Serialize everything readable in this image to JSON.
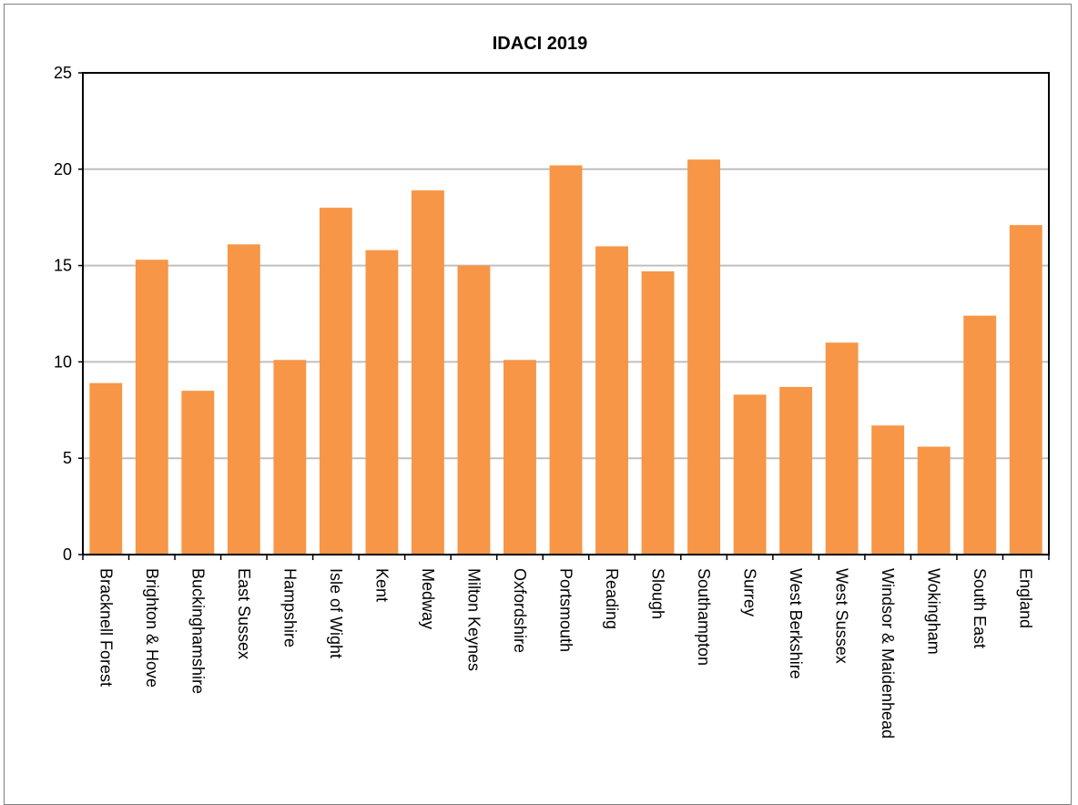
{
  "chart_data": {
    "type": "bar",
    "title": "IDACI 2019",
    "xlabel": "",
    "ylabel": "",
    "ylim": [
      0,
      25
    ],
    "yticks": [
      0,
      5,
      10,
      15,
      20,
      25
    ],
    "grid": true,
    "legend": "none",
    "bar_color": "#f79646",
    "categories": [
      "Bracknell Forest",
      "Brighton & Hove",
      "Buckinghamshire",
      "East Sussex",
      "Hampshire",
      "Isle of Wight",
      "Kent",
      "Medway",
      "Milton Keynes",
      "Oxfordshire",
      "Portsmouth",
      "Reading",
      "Slough",
      "Southampton",
      "Surrey",
      "West Berkshire",
      "West Sussex",
      "Windsor & Maidenhead",
      "Wokingham",
      "South East",
      "England"
    ],
    "values": [
      8.9,
      15.3,
      8.5,
      16.1,
      10.1,
      18.0,
      15.8,
      18.9,
      15.0,
      10.1,
      20.2,
      16.0,
      14.7,
      20.5,
      8.3,
      8.7,
      11.0,
      6.7,
      5.6,
      12.4,
      17.1
    ]
  }
}
